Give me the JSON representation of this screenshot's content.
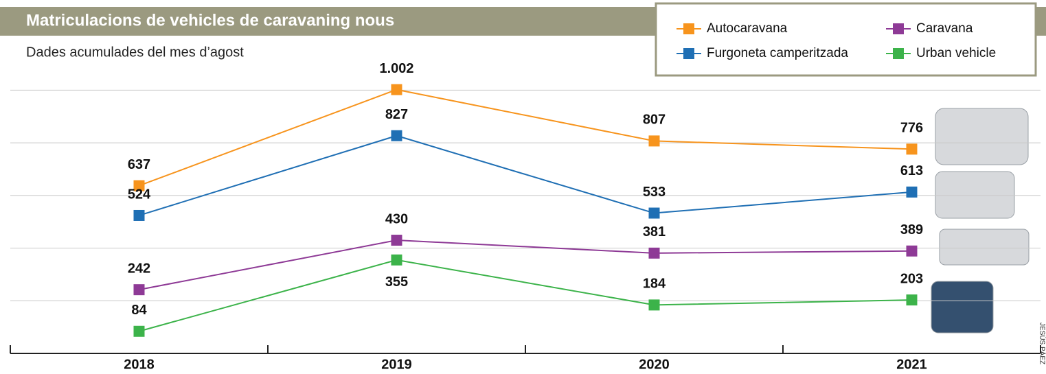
{
  "chart_data": {
    "type": "line",
    "title": "Matriculacions de vehicles de caravaning nous",
    "subtitle": "Dades acumulades del mes d’agost",
    "credit": "JESÚS PÁEZ",
    "categories": [
      "2018",
      "2019",
      "2020",
      "2021"
    ],
    "series": [
      {
        "name": "Autocaravana",
        "color": "#f7941d",
        "values": [
          637,
          1002,
          807,
          776
        ],
        "value_labels": [
          "637",
          "1.002",
          "807",
          "776"
        ]
      },
      {
        "name": "Furgoneta camperitzada",
        "color": "#1f6fb4",
        "values": [
          524,
          827,
          533,
          613
        ]
      },
      {
        "name": "Caravana",
        "color": "#8e3a96",
        "values": [
          242,
          430,
          381,
          389
        ]
      },
      {
        "name": "Urban vehicle",
        "color": "#3cb34a",
        "values": [
          84,
          355,
          184,
          203
        ]
      }
    ],
    "ylim": [
      0,
      1100
    ],
    "yticks": [
      200,
      400,
      600,
      800,
      1000
    ],
    "grid": true,
    "legend": "top-right"
  }
}
